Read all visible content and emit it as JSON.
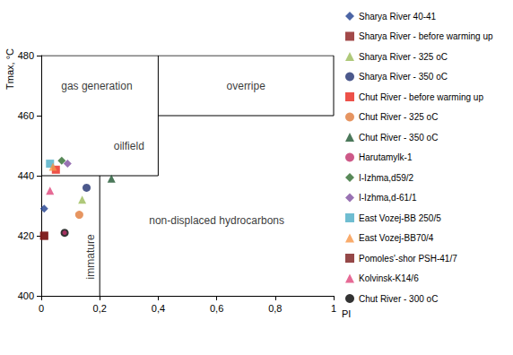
{
  "chart_data": {
    "type": "scatter",
    "x_label": "PI",
    "y_label": "Tmax, °C",
    "xlim": [
      0,
      1
    ],
    "xticks": [
      0,
      {
        "value": 0.2,
        "label": "0,2"
      },
      {
        "value": 0.4,
        "label": "0,4"
      },
      {
        "value": 0.6,
        "label": "0,6"
      },
      {
        "value": 0.8,
        "label": "0,8"
      },
      1
    ],
    "ylim": [
      400,
      480
    ],
    "yticks": [
      400,
      420,
      440,
      460,
      480
    ],
    "grid": false,
    "legend": "right",
    "series": [
      {
        "name": "Sharya River 40-41",
        "color": "#1f3f8f",
        "marker": "diamond",
        "x": [
          0.01
        ],
        "values": [
          429
        ]
      },
      {
        "name": "Sharya River - before warming up",
        "color": "#8b1c1c",
        "marker": "square",
        "x": [
          0.01
        ],
        "values": [
          420
        ]
      },
      {
        "name": "Sharya River - 325 oC",
        "color": "#9bbb59",
        "marker": "triangle",
        "x": [
          0.14
        ],
        "values": [
          432
        ]
      },
      {
        "name": "Sharya River - 350 oC",
        "color": "#1f2f6f",
        "marker": "circle",
        "x": [
          0.155
        ],
        "values": [
          436
        ]
      },
      {
        "name": "Chut River - before warming up",
        "color": "#e8261c",
        "marker": "square",
        "x": [
          0.05
        ],
        "values": [
          442
        ]
      },
      {
        "name": "Chut River - 325 oC",
        "color": "#e07b39",
        "marker": "circle",
        "x": [
          0.13
        ],
        "values": [
          427
        ]
      },
      {
        "name": "Chut River - 350 oC",
        "color": "#1e5631",
        "marker": "triangle",
        "x": [
          0.24
        ],
        "values": [
          439
        ]
      },
      {
        "name": "Harutamylk-1",
        "color": "#c0306a",
        "marker": "point",
        "x": [
          0.08
        ],
        "values": [
          421
        ]
      },
      {
        "name": "I-Izhma,d59/2",
        "color": "#2e6b2e",
        "marker": "diamond",
        "x": [
          0.07
        ],
        "values": [
          445
        ]
      },
      {
        "name": "I-Izhma,d-61/1",
        "color": "#7f4fa0",
        "marker": "diamond",
        "x": [
          0.09
        ],
        "values": [
          444
        ]
      },
      {
        "name": "East Vozej-BB 250/5",
        "color": "#4bacc6",
        "marker": "square",
        "x": [
          0.03
        ],
        "values": [
          444
        ]
      },
      {
        "name": "East Vozej-BB70/4",
        "color": "#f79646",
        "marker": "triangle",
        "x": [
          0.04
        ],
        "values": [
          443
        ]
      },
      {
        "name": "Pomoles'-shor PSH-41/7",
        "color": "#7b1a1a",
        "marker": "square",
        "x": [
          0.01
        ],
        "values": [
          420
        ]
      },
      {
        "name": "Kolvinsk-K14/6",
        "color": "#e0457b",
        "marker": "triangle",
        "x": [
          0.03
        ],
        "values": [
          435
        ]
      },
      {
        "name": "Chut River - 300 oC",
        "color": "#000000",
        "marker": "circle",
        "x": [
          0.08
        ],
        "values": [
          421
        ]
      }
    ],
    "region_lines": [
      {
        "x": [
          0.2,
          0.2
        ],
        "y": [
          400,
          440
        ]
      },
      {
        "x": [
          0,
          0.4
        ],
        "y": [
          440,
          440
        ]
      },
      {
        "x": [
          0.4,
          0.4
        ],
        "y": [
          440,
          480
        ]
      },
      {
        "x": [
          0.4,
          1
        ],
        "y": [
          460,
          460
        ]
      },
      {
        "x": [
          0,
          1
        ],
        "y": [
          480,
          480
        ]
      },
      {
        "x": [
          1,
          1
        ],
        "y": [
          460,
          480
        ]
      }
    ],
    "annotations": [
      {
        "text": "gas generation",
        "x": 0.19,
        "y": 470
      },
      {
        "text": "overripe",
        "x": 0.7,
        "y": 470
      },
      {
        "text": "oilfield",
        "x": 0.3,
        "y": 450
      },
      {
        "text": "non-displaced hydrocarbons",
        "x": 0.6,
        "y": 425
      },
      {
        "text": "immature",
        "x": 0.17,
        "y": 413,
        "orientation": "vertical"
      }
    ]
  }
}
